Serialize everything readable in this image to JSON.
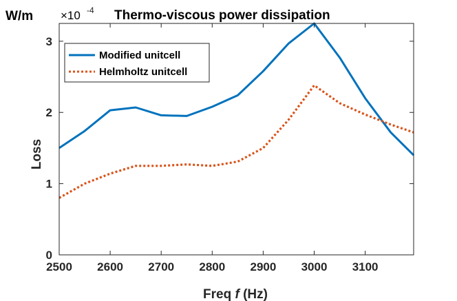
{
  "chart_data": {
    "type": "line",
    "title": "Thermo-viscous power dissipation",
    "unit_label": "W/m",
    "exponent_label": "×10",
    "exponent_power": "-4",
    "xlabel_prefix": "Freq ",
    "xlabel_var": "f",
    "xlabel_suffix": " (Hz)",
    "ylabel": "Loss",
    "xlim": [
      2500,
      3195
    ],
    "ylim": [
      0,
      3.25
    ],
    "x_ticks": [
      2500,
      2600,
      2700,
      2800,
      2900,
      3000,
      3100
    ],
    "y_ticks": [
      0,
      1,
      2,
      3
    ],
    "legend_position": "top-left",
    "x": [
      2500,
      2550,
      2600,
      2650,
      2700,
      2750,
      2800,
      2850,
      2900,
      2950,
      3000,
      3050,
      3100,
      3150,
      3195
    ],
    "series": [
      {
        "name": "Modified unitcell",
        "color": "#0072bd",
        "style": "solid",
        "values": [
          1.5,
          1.74,
          2.03,
          2.07,
          1.96,
          1.95,
          2.08,
          2.24,
          2.58,
          2.97,
          3.25,
          2.77,
          2.2,
          1.72,
          1.4
        ]
      },
      {
        "name": "Helmholtz unitcell",
        "color": "#d95319",
        "style": "dotted",
        "values": [
          0.8,
          1.0,
          1.14,
          1.25,
          1.25,
          1.27,
          1.25,
          1.31,
          1.5,
          1.9,
          2.38,
          2.13,
          1.97,
          1.83,
          1.72
        ]
      }
    ]
  }
}
